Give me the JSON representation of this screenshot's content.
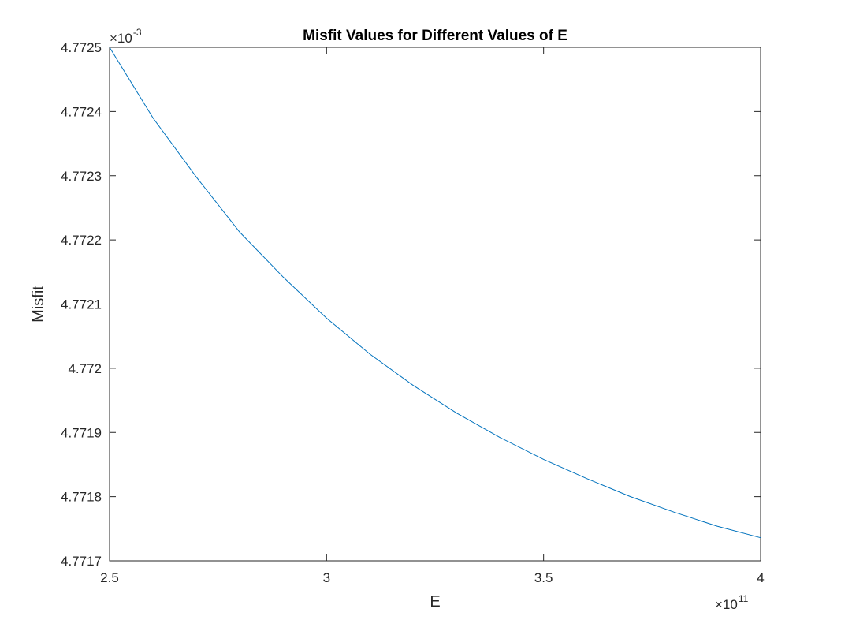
{
  "chart_data": {
    "type": "line",
    "title": "Misfit Values for Different Values of E",
    "xlabel": "E",
    "ylabel": "Misfit",
    "x_exponent_prefix": "×10",
    "x_exponent": "11",
    "y_exponent_prefix": "×10",
    "y_exponent": "-3",
    "xlim": [
      2.5,
      4.0
    ],
    "ylim": [
      4.7717,
      4.7725
    ],
    "x_ticks": [
      2.5,
      3.0,
      3.5,
      4.0
    ],
    "x_tick_labels": [
      "2.5",
      "3",
      "3.5",
      "4"
    ],
    "y_ticks": [
      4.7717,
      4.7718,
      4.7719,
      4.772,
      4.7721,
      4.7722,
      4.7723,
      4.7724,
      4.7725
    ],
    "y_tick_labels": [
      "4.7717",
      "4.7718",
      "4.7719",
      "4.772",
      "4.7721",
      "4.7722",
      "4.7723",
      "4.7724",
      "4.7725"
    ],
    "grid": false,
    "series": [
      {
        "color": "#0072BD",
        "x": [
          2.5,
          2.6,
          2.7,
          2.8,
          2.9,
          3.0,
          3.1,
          3.2,
          3.3,
          3.4,
          3.5,
          3.6,
          3.7,
          3.8,
          3.9,
          4.0
        ],
        "y": [
          4.7725,
          4.77239,
          4.772298,
          4.772212,
          4.772142,
          4.772078,
          4.772022,
          4.771973,
          4.77193,
          4.771892,
          4.771858,
          4.771828,
          4.7718,
          4.771776,
          4.771754,
          4.771736
        ]
      }
    ]
  }
}
